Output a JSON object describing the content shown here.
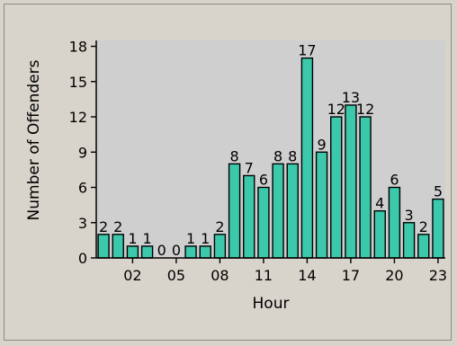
{
  "chart_data": {
    "type": "bar",
    "title": "",
    "xlabel": "Hour",
    "ylabel": "Number of Offenders",
    "x": [
      0,
      1,
      2,
      3,
      4,
      5,
      6,
      7,
      8,
      9,
      10,
      11,
      12,
      13,
      14,
      15,
      16,
      17,
      18,
      19,
      20,
      21,
      22,
      23
    ],
    "values": [
      2,
      2,
      1,
      1,
      0,
      0,
      1,
      1,
      2,
      8,
      7,
      6,
      8,
      8,
      17,
      9,
      12,
      13,
      12,
      4,
      6,
      3,
      2,
      5
    ],
    "x_tick_labels": [
      "02",
      "05",
      "08",
      "11",
      "14",
      "17",
      "20",
      "23"
    ],
    "x_tick_values": [
      2,
      5,
      8,
      11,
      14,
      17,
      20,
      23
    ],
    "y_ticks": [
      0,
      3,
      6,
      9,
      12,
      15,
      18
    ],
    "ylim": [
      0,
      18.5
    ],
    "grid": false,
    "data_labels": true,
    "colors": {
      "bar": "#3cc8ab",
      "plot_bg": "#cfcfcf",
      "frame_bg": "#d8d4cb"
    }
  }
}
